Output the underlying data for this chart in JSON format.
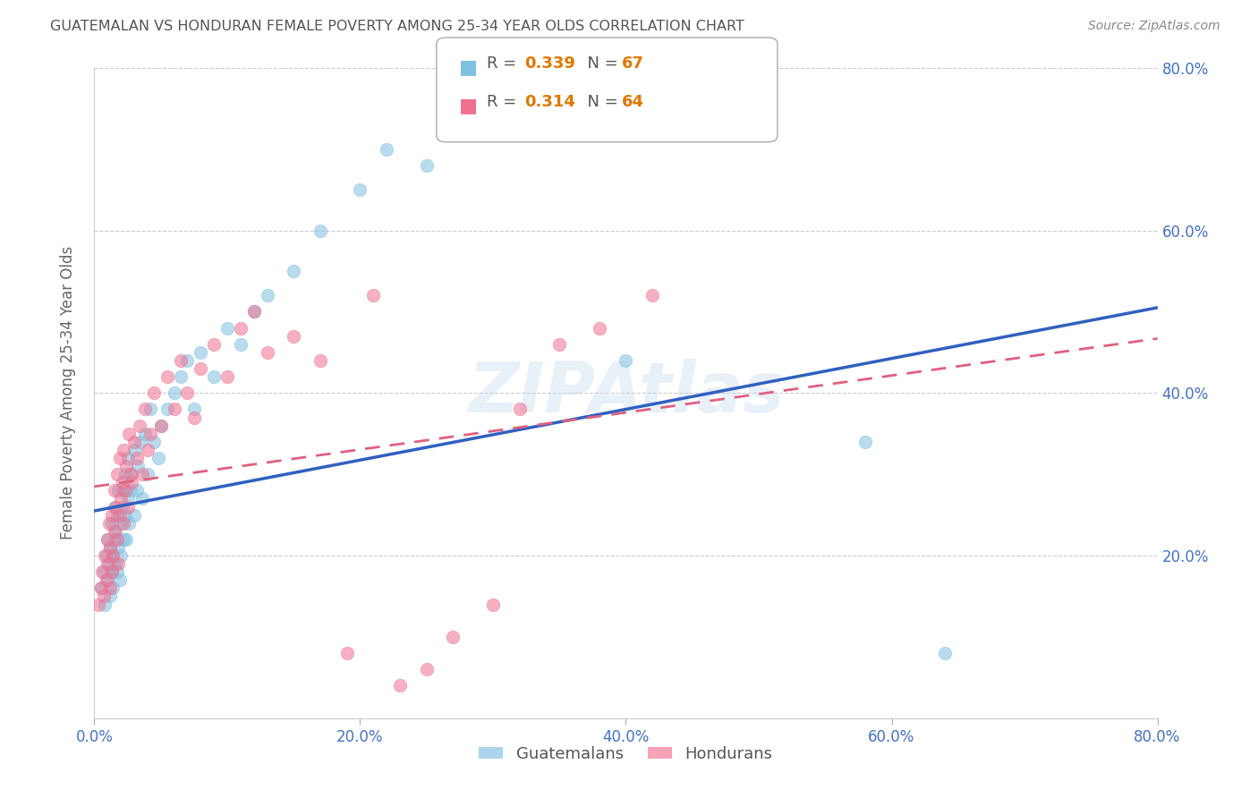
{
  "title": "GUATEMALAN VS HONDURAN FEMALE POVERTY AMONG 25-34 YEAR OLDS CORRELATION CHART",
  "source": "Source: ZipAtlas.com",
  "ylabel": "Female Poverty Among 25-34 Year Olds",
  "x_tick_labels": [
    "0.0%",
    "20.0%",
    "40.0%",
    "60.0%",
    "80.0%"
  ],
  "x_tick_vals": [
    0.0,
    0.2,
    0.4,
    0.6,
    0.8
  ],
  "y_tick_labels_right": [
    "80.0%",
    "60.0%",
    "40.0%",
    "20.0%"
  ],
  "y_tick_vals": [
    0.8,
    0.6,
    0.4,
    0.2
  ],
  "xlim": [
    0.0,
    0.8
  ],
  "ylim": [
    0.0,
    0.8
  ],
  "blue_scatter_color": "#7fbfdf",
  "pink_scatter_color": "#f07090",
  "blue_line_color": "#3060c0",
  "pink_line_color": "#e06080",
  "watermark": "ZIPAtlas",
  "title_color": "#555555",
  "source_color": "#888888",
  "axis_label_color": "#666666",
  "tick_color": "#4472c4",
  "grid_color": "#cccccc",
  "orange_color": "#e07800",
  "legend_blue_R": "0.339",
  "legend_blue_N": "67",
  "legend_pink_R": "0.314",
  "legend_pink_N": "64",
  "blue_trend": [
    0.255,
    0.505
  ],
  "pink_trend": [
    0.285,
    0.467
  ],
  "guatemalan_x": [
    0.005,
    0.007,
    0.008,
    0.009,
    0.01,
    0.01,
    0.011,
    0.012,
    0.012,
    0.013,
    0.013,
    0.014,
    0.014,
    0.015,
    0.015,
    0.016,
    0.016,
    0.017,
    0.017,
    0.018,
    0.018,
    0.019,
    0.02,
    0.02,
    0.021,
    0.022,
    0.022,
    0.023,
    0.023,
    0.024,
    0.025,
    0.025,
    0.026,
    0.027,
    0.028,
    0.03,
    0.03,
    0.032,
    0.033,
    0.035,
    0.036,
    0.038,
    0.04,
    0.042,
    0.045,
    0.048,
    0.05,
    0.055,
    0.06,
    0.065,
    0.07,
    0.075,
    0.08,
    0.09,
    0.1,
    0.11,
    0.12,
    0.13,
    0.15,
    0.17,
    0.2,
    0.22,
    0.25,
    0.3,
    0.4,
    0.58,
    0.64
  ],
  "guatemalan_y": [
    0.16,
    0.18,
    0.14,
    0.2,
    0.17,
    0.22,
    0.19,
    0.15,
    0.21,
    0.18,
    0.24,
    0.16,
    0.2,
    0.22,
    0.26,
    0.19,
    0.23,
    0.18,
    0.25,
    0.21,
    0.28,
    0.17,
    0.2,
    0.24,
    0.26,
    0.22,
    0.28,
    0.25,
    0.3,
    0.22,
    0.27,
    0.32,
    0.24,
    0.28,
    0.3,
    0.25,
    0.33,
    0.28,
    0.31,
    0.34,
    0.27,
    0.35,
    0.3,
    0.38,
    0.34,
    0.32,
    0.36,
    0.38,
    0.4,
    0.42,
    0.44,
    0.38,
    0.45,
    0.42,
    0.48,
    0.46,
    0.5,
    0.52,
    0.55,
    0.6,
    0.65,
    0.7,
    0.68,
    0.72,
    0.44,
    0.34,
    0.08
  ],
  "honduran_x": [
    0.003,
    0.005,
    0.006,
    0.007,
    0.008,
    0.009,
    0.01,
    0.01,
    0.011,
    0.012,
    0.012,
    0.013,
    0.013,
    0.014,
    0.015,
    0.015,
    0.016,
    0.017,
    0.017,
    0.018,
    0.019,
    0.019,
    0.02,
    0.021,
    0.022,
    0.022,
    0.023,
    0.024,
    0.025,
    0.026,
    0.027,
    0.028,
    0.03,
    0.032,
    0.034,
    0.036,
    0.038,
    0.04,
    0.042,
    0.045,
    0.05,
    0.055,
    0.06,
    0.065,
    0.07,
    0.075,
    0.08,
    0.09,
    0.1,
    0.11,
    0.12,
    0.13,
    0.15,
    0.17,
    0.19,
    0.21,
    0.23,
    0.25,
    0.27,
    0.3,
    0.32,
    0.35,
    0.38,
    0.42
  ],
  "honduran_y": [
    0.14,
    0.16,
    0.18,
    0.15,
    0.2,
    0.17,
    0.22,
    0.19,
    0.24,
    0.16,
    0.21,
    0.18,
    0.25,
    0.2,
    0.28,
    0.23,
    0.26,
    0.22,
    0.3,
    0.19,
    0.25,
    0.32,
    0.27,
    0.29,
    0.24,
    0.33,
    0.28,
    0.31,
    0.26,
    0.35,
    0.3,
    0.29,
    0.34,
    0.32,
    0.36,
    0.3,
    0.38,
    0.33,
    0.35,
    0.4,
    0.36,
    0.42,
    0.38,
    0.44,
    0.4,
    0.37,
    0.43,
    0.46,
    0.42,
    0.48,
    0.5,
    0.45,
    0.47,
    0.44,
    0.08,
    0.52,
    0.04,
    0.06,
    0.1,
    0.14,
    0.38,
    0.46,
    0.48,
    0.52
  ]
}
